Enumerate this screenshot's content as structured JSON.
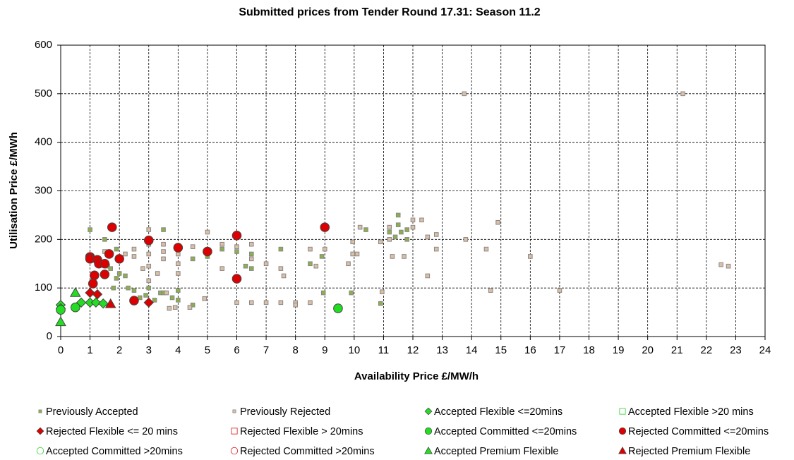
{
  "chart_data": {
    "type": "scatter",
    "title": "Submitted prices from Tender Round 17.31: Season 11.2",
    "x_label": "Availability Price £/MW/h",
    "y_label": "Utilisation Price £/MWh",
    "xlim": [
      0,
      24
    ],
    "xticks": [
      0,
      1,
      2,
      3,
      4,
      5,
      6,
      7,
      8,
      9,
      10,
      11,
      12,
      13,
      14,
      15,
      16,
      17,
      18,
      19,
      20,
      21,
      22,
      23,
      24
    ],
    "ylim": [
      0,
      600
    ],
    "yticks": [
      0,
      100,
      200,
      300,
      400,
      500,
      600
    ],
    "grid": true,
    "series": [
      {
        "name": "Previously Accepted",
        "marker": "square",
        "color": "#8db04a",
        "filled": true,
        "x": [
          1.0,
          1.5,
          1.9,
          1.6,
          1.7,
          1.8,
          1.9,
          2.0,
          2.2,
          2.3,
          2.5,
          2.7,
          2.9,
          3.0,
          3.2,
          3.4,
          3.5,
          3.5,
          3.8,
          4.0,
          4.0,
          4.5,
          4.5,
          5.0,
          5.5,
          6.0,
          6.3,
          6.5,
          6.5,
          7.5,
          8.5,
          8.9,
          8.95,
          9.9,
          10.4,
          10.9,
          11.2,
          11.4,
          11.5,
          11.5,
          11.6,
          11.8,
          11.8
        ],
        "values": [
          220,
          200,
          180,
          145,
          140,
          100,
          120,
          130,
          125,
          100,
          95,
          80,
          85,
          100,
          75,
          90,
          220,
          90,
          80,
          75,
          95,
          65,
          160,
          165,
          180,
          175,
          145,
          170,
          140,
          180,
          150,
          165,
          90,
          90,
          220,
          68,
          215,
          205,
          250,
          230,
          215,
          220,
          200
        ]
      },
      {
        "name": "Previously Rejected",
        "marker": "square",
        "color": "#dcbfa4",
        "filled": true,
        "x": [
          1.5,
          2.2,
          2.5,
          2.5,
          2.8,
          3.0,
          3.0,
          3.0,
          3.0,
          3.0,
          3.3,
          3.5,
          3.5,
          3.5,
          3.6,
          3.7,
          3.9,
          4.0,
          4.0,
          4.0,
          4.4,
          4.5,
          4.9,
          5.0,
          5.5,
          5.5,
          6.0,
          6.0,
          6.5,
          6.5,
          6.5,
          7.0,
          7.0,
          7.5,
          7.5,
          7.6,
          8.0,
          8.0,
          8.5,
          8.5,
          8.7,
          9.0,
          9.8,
          9.95,
          9.95,
          10.1,
          10.2,
          10.9,
          10.95,
          11.2,
          11.2,
          11.3,
          11.7,
          12.0,
          12.0,
          12.3,
          12.5,
          12.5,
          12.8,
          12.8,
          13.75,
          13.8,
          14.5,
          14.65,
          14.9,
          16.0,
          17.0,
          21.2,
          22.5,
          22.75
        ],
        "values": [
          175,
          170,
          180,
          165,
          140,
          220,
          190,
          170,
          145,
          115,
          130,
          190,
          175,
          160,
          90,
          58,
          60,
          170,
          150,
          130,
          60,
          185,
          78,
          215,
          190,
          140,
          185,
          70,
          190,
          160,
          70,
          150,
          70,
          140,
          70,
          125,
          70,
          65,
          180,
          70,
          145,
          180,
          150,
          195,
          170,
          170,
          225,
          195,
          92,
          225,
          200,
          165,
          165,
          240,
          225,
          240,
          205,
          125,
          210,
          180,
          500,
          200,
          180,
          95,
          235,
          165,
          95,
          500,
          148,
          145
        ]
      },
      {
        "name": "Accepted Flexible <=20mins",
        "marker": "diamond",
        "color": "#22dd22",
        "filled": true,
        "x": [
          0,
          0,
          0.7,
          1.0,
          1.2,
          1.45
        ],
        "values": [
          65,
          58,
          70,
          70,
          70,
          68
        ]
      },
      {
        "name": "Accepted Flexible >20 mins",
        "marker": "square",
        "color": "#22cc22",
        "filled": false,
        "x": [],
        "values": []
      },
      {
        "name": "Rejected Flexible <= 20 mins",
        "marker": "diamond",
        "color": "#dd0000",
        "filled": true,
        "x": [
          1.0,
          1.25,
          3.0
        ],
        "values": [
          90,
          87,
          70
        ]
      },
      {
        "name": "Rejected Flexible > 20mins",
        "marker": "square",
        "color": "#dd0000",
        "filled": false,
        "x": [],
        "values": []
      },
      {
        "name": "Accepted Committed <=20mins",
        "marker": "circle",
        "color": "#22dd22",
        "filled": true,
        "x": [
          0,
          0.5,
          9.45
        ],
        "values": [
          55,
          60,
          58
        ]
      },
      {
        "name": "Rejected Committed <=20mins",
        "marker": "circle",
        "color": "#dd0000",
        "filled": true,
        "x": [
          1.75,
          1.0,
          1.0,
          1.25,
          1.3,
          1.5,
          1.65,
          2.0,
          1.15,
          1.5,
          1.1,
          3.0,
          4.0,
          5.0,
          6.0,
          6.0,
          9.0,
          2.5
        ],
        "values": [
          225,
          164,
          160,
          158,
          150,
          150,
          170,
          160,
          126,
          128,
          109,
          198,
          183,
          175,
          208,
          119,
          225,
          74
        ]
      },
      {
        "name": "Accepted Committed >20mins",
        "marker": "circle",
        "color": "#22cc22",
        "filled": false,
        "x": [],
        "values": []
      },
      {
        "name": "Rejected Committed >20mins",
        "marker": "circle",
        "color": "#dd0000",
        "filled": false,
        "x": [],
        "values": []
      },
      {
        "name": "Accepted Premium Flexible",
        "marker": "triangle",
        "color": "#22dd22",
        "filled": true,
        "x": [
          0.5,
          0
        ],
        "values": [
          90,
          30
        ]
      },
      {
        "name": "Rejected Premium Flexible",
        "marker": "triangle",
        "color": "#dd0000",
        "filled": true,
        "x": [
          1.7
        ],
        "values": [
          67
        ]
      }
    ]
  }
}
